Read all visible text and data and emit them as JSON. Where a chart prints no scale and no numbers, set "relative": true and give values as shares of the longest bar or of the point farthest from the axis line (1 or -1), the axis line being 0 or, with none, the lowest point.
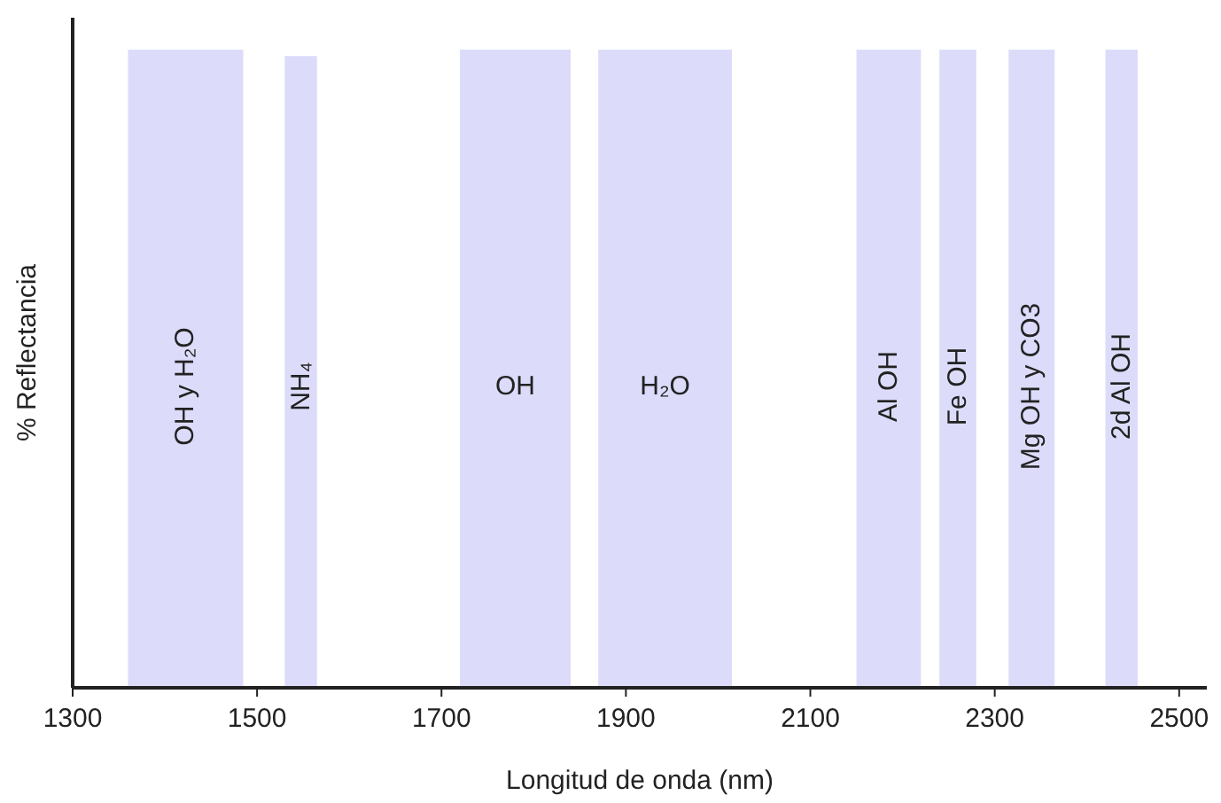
{
  "chart_data": {
    "type": "area",
    "relative": true,
    "xlabel": "Longitud de onda (nm)",
    "ylabel": "% Reflectancia",
    "xlim": [
      1300,
      2530
    ],
    "xticks": [
      1300,
      1500,
      1700,
      1900,
      2100,
      2300,
      2500
    ],
    "tick_labels": "x",
    "grid": false,
    "series": [
      {
        "color": "#dcdcfa",
        "x": [
          1300,
          1360,
          1360,
          1485,
          1485,
          1530,
          1530,
          1565,
          1565,
          1720,
          1720,
          1840,
          1840,
          1870,
          1870,
          2015,
          2015,
          2150,
          2150,
          2220,
          2220,
          2240,
          2240,
          2280,
          2280,
          2315,
          2315,
          2365,
          2365,
          2420,
          2420,
          2455,
          2455,
          2530
        ],
        "values": [
          0,
          0,
          1,
          1,
          0,
          0,
          0.99,
          0.99,
          0,
          0,
          1,
          1,
          0,
          0,
          1,
          1,
          0,
          0,
          1,
          1,
          0,
          0,
          1,
          1,
          0,
          0,
          1,
          1,
          0,
          0,
          1,
          1,
          0,
          0
        ]
      }
    ],
    "annotations": [
      "OH y H₂O",
      "NH₄",
      "OH",
      "H₂O",
      "Al OH",
      "Fe OH",
      "Mg OH y CO3",
      "2d Al OH"
    ]
  }
}
